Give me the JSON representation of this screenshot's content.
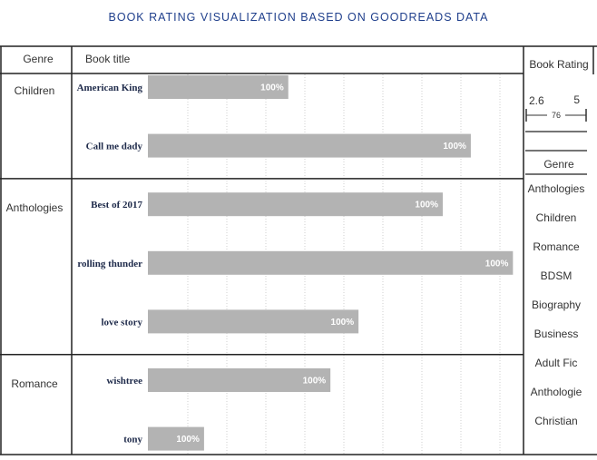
{
  "title": "BOOK RATING VISUALIZATION BASED ON GOODREADS DATA",
  "headers": {
    "genre": "Genre",
    "book_title": "Book title"
  },
  "chart_data": {
    "type": "bar",
    "orientation": "horizontal",
    "groups": [
      {
        "genre": "Children",
        "books": [
          {
            "title": "American King",
            "value": 1.0,
            "label": "100%"
          },
          {
            "title": "Call me dady",
            "value": 2.3,
            "label": "100%"
          }
        ]
      },
      {
        "genre": "Anthologies",
        "books": [
          {
            "title": "Best of 2017",
            "value": 2.1,
            "label": "100%"
          },
          {
            "title": "rolling thunder",
            "value": 2.6,
            "label": "100%"
          },
          {
            "title": "love story",
            "value": 1.5,
            "label": "100%"
          }
        ]
      },
      {
        "genre": "Romance",
        "books": [
          {
            "title": "wishtree",
            "value": 1.3,
            "label": "100%"
          },
          {
            "title": "tony",
            "value": 0.4,
            "label": "100%"
          }
        ]
      }
    ],
    "xlim": [
      0,
      2.63
    ],
    "grid": true,
    "bar_color": "#b3b3b3"
  },
  "rating_filter": {
    "title": "Book Rating",
    "min": "2.6",
    "max": "5",
    "current": "76"
  },
  "genre_filter": {
    "title": "Genre",
    "items": [
      "Anthologies",
      "Children",
      "Romance",
      "BDSM",
      "Biography",
      "Business",
      "Adult Fic",
      "Anthologie",
      "Christian"
    ]
  }
}
